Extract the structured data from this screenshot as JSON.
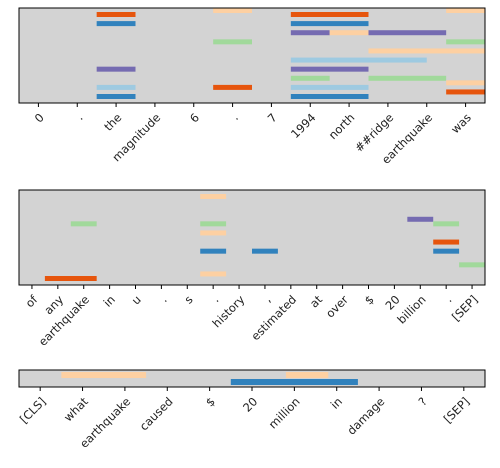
{
  "colors": {
    "background": "#d3d3d3",
    "axis": "#000000",
    "orange": "#e6550d",
    "light_orange": "#fdd0a2",
    "blue": "#3182bd",
    "light_blue": "#9ecae1",
    "purple": "#756bb1",
    "green": "#a1d99b"
  },
  "chart_data": [
    {
      "type": "heatmap",
      "panel": "top",
      "tokens": [
        "0",
        ".",
        "the",
        "magnitude",
        "6",
        ".",
        "7",
        "1994",
        "north",
        "##ridge",
        "earthquake",
        "was"
      ],
      "rows": 10,
      "segments": [
        {
          "start": 2,
          "end": 3,
          "row": 0,
          "color": "orange"
        },
        {
          "start": 2,
          "end": 3,
          "row": 1,
          "color": "blue"
        },
        {
          "start": 2,
          "end": 3,
          "row": 6,
          "color": "purple"
        },
        {
          "start": 2,
          "end": 3,
          "row": 8,
          "color": "light_blue"
        },
        {
          "start": 2,
          "end": 3,
          "row": 9,
          "color": "blue"
        },
        {
          "start": 5,
          "end": 6,
          "row": -1,
          "color": "light_orange"
        },
        {
          "start": 5,
          "end": 6,
          "row": 3,
          "color": "green"
        },
        {
          "start": 5,
          "end": 6,
          "row": 8,
          "color": "orange"
        },
        {
          "start": 7,
          "end": 9,
          "row": 0,
          "color": "orange"
        },
        {
          "start": 7,
          "end": 9,
          "row": 1,
          "color": "blue"
        },
        {
          "start": 7,
          "end": 8,
          "row": 2,
          "color": "purple"
        },
        {
          "start": 7,
          "end": 10.5,
          "row": 5,
          "color": "light_blue"
        },
        {
          "start": 7,
          "end": 9,
          "row": 6,
          "color": "purple"
        },
        {
          "start": 7,
          "end": 8,
          "row": 7,
          "color": "green"
        },
        {
          "start": 7,
          "end": 9,
          "row": 8,
          "color": "light_blue"
        },
        {
          "start": 7,
          "end": 9,
          "row": 9,
          "color": "blue"
        },
        {
          "start": 8,
          "end": 9,
          "row": 2,
          "color": "light_orange"
        },
        {
          "start": 9,
          "end": 11,
          "row": 2,
          "color": "purple"
        },
        {
          "start": 9,
          "end": 12,
          "row": 4,
          "color": "light_orange"
        },
        {
          "start": 9,
          "end": 11,
          "row": 7,
          "color": "green"
        },
        {
          "start": 11,
          "end": 12,
          "row": -1,
          "color": "light_orange"
        },
        {
          "start": 11,
          "end": 12,
          "row": 3,
          "color": "green"
        },
        {
          "start": 11,
          "end": 12,
          "row": 7.5,
          "color": "light_orange"
        },
        {
          "start": 11,
          "end": 12,
          "row": 8.5,
          "color": "orange"
        }
      ]
    },
    {
      "type": "heatmap",
      "panel": "middle",
      "tokens": [
        "of",
        "any",
        "earthquake",
        "in",
        "u",
        ".",
        "s",
        ".",
        "history",
        ",",
        "estimated",
        "at",
        "over",
        "$",
        "20",
        "billion",
        ".",
        "[SEP]"
      ],
      "rows": 10,
      "segments": [
        {
          "start": 1,
          "end": 3,
          "row": 9,
          "color": "orange"
        },
        {
          "start": 2,
          "end": 3,
          "row": 3,
          "color": "green"
        },
        {
          "start": 7,
          "end": 8,
          "row": 0,
          "color": "light_orange"
        },
        {
          "start": 7,
          "end": 8,
          "row": 3,
          "color": "green"
        },
        {
          "start": 7,
          "end": 8,
          "row": 4,
          "color": "light_orange"
        },
        {
          "start": 7,
          "end": 8,
          "row": 6,
          "color": "blue"
        },
        {
          "start": 7,
          "end": 8,
          "row": 8.5,
          "color": "light_orange"
        },
        {
          "start": 9,
          "end": 10,
          "row": 6,
          "color": "blue"
        },
        {
          "start": 15,
          "end": 16,
          "row": 2.5,
          "color": "purple"
        },
        {
          "start": 16,
          "end": 17,
          "row": 3,
          "color": "green"
        },
        {
          "start": 16,
          "end": 17,
          "row": 5,
          "color": "orange"
        },
        {
          "start": 16,
          "end": 17,
          "row": 6,
          "color": "blue"
        },
        {
          "start": 17,
          "end": 18,
          "row": 7.5,
          "color": "green"
        }
      ]
    },
    {
      "type": "heatmap",
      "panel": "bottom",
      "tokens": [
        "[CLS]",
        "what",
        "earthquake",
        "caused",
        "$",
        "20",
        "million",
        "in",
        "damage",
        "?",
        "[SEP]"
      ],
      "rows": 2,
      "segments": [
        {
          "start": 1,
          "end": 3,
          "row": 0,
          "color": "light_orange"
        },
        {
          "start": 5,
          "end": 8,
          "row": 1,
          "color": "blue"
        },
        {
          "start": 6.3,
          "end": 7.3,
          "row": 0,
          "color": "light_orange"
        }
      ]
    }
  ]
}
